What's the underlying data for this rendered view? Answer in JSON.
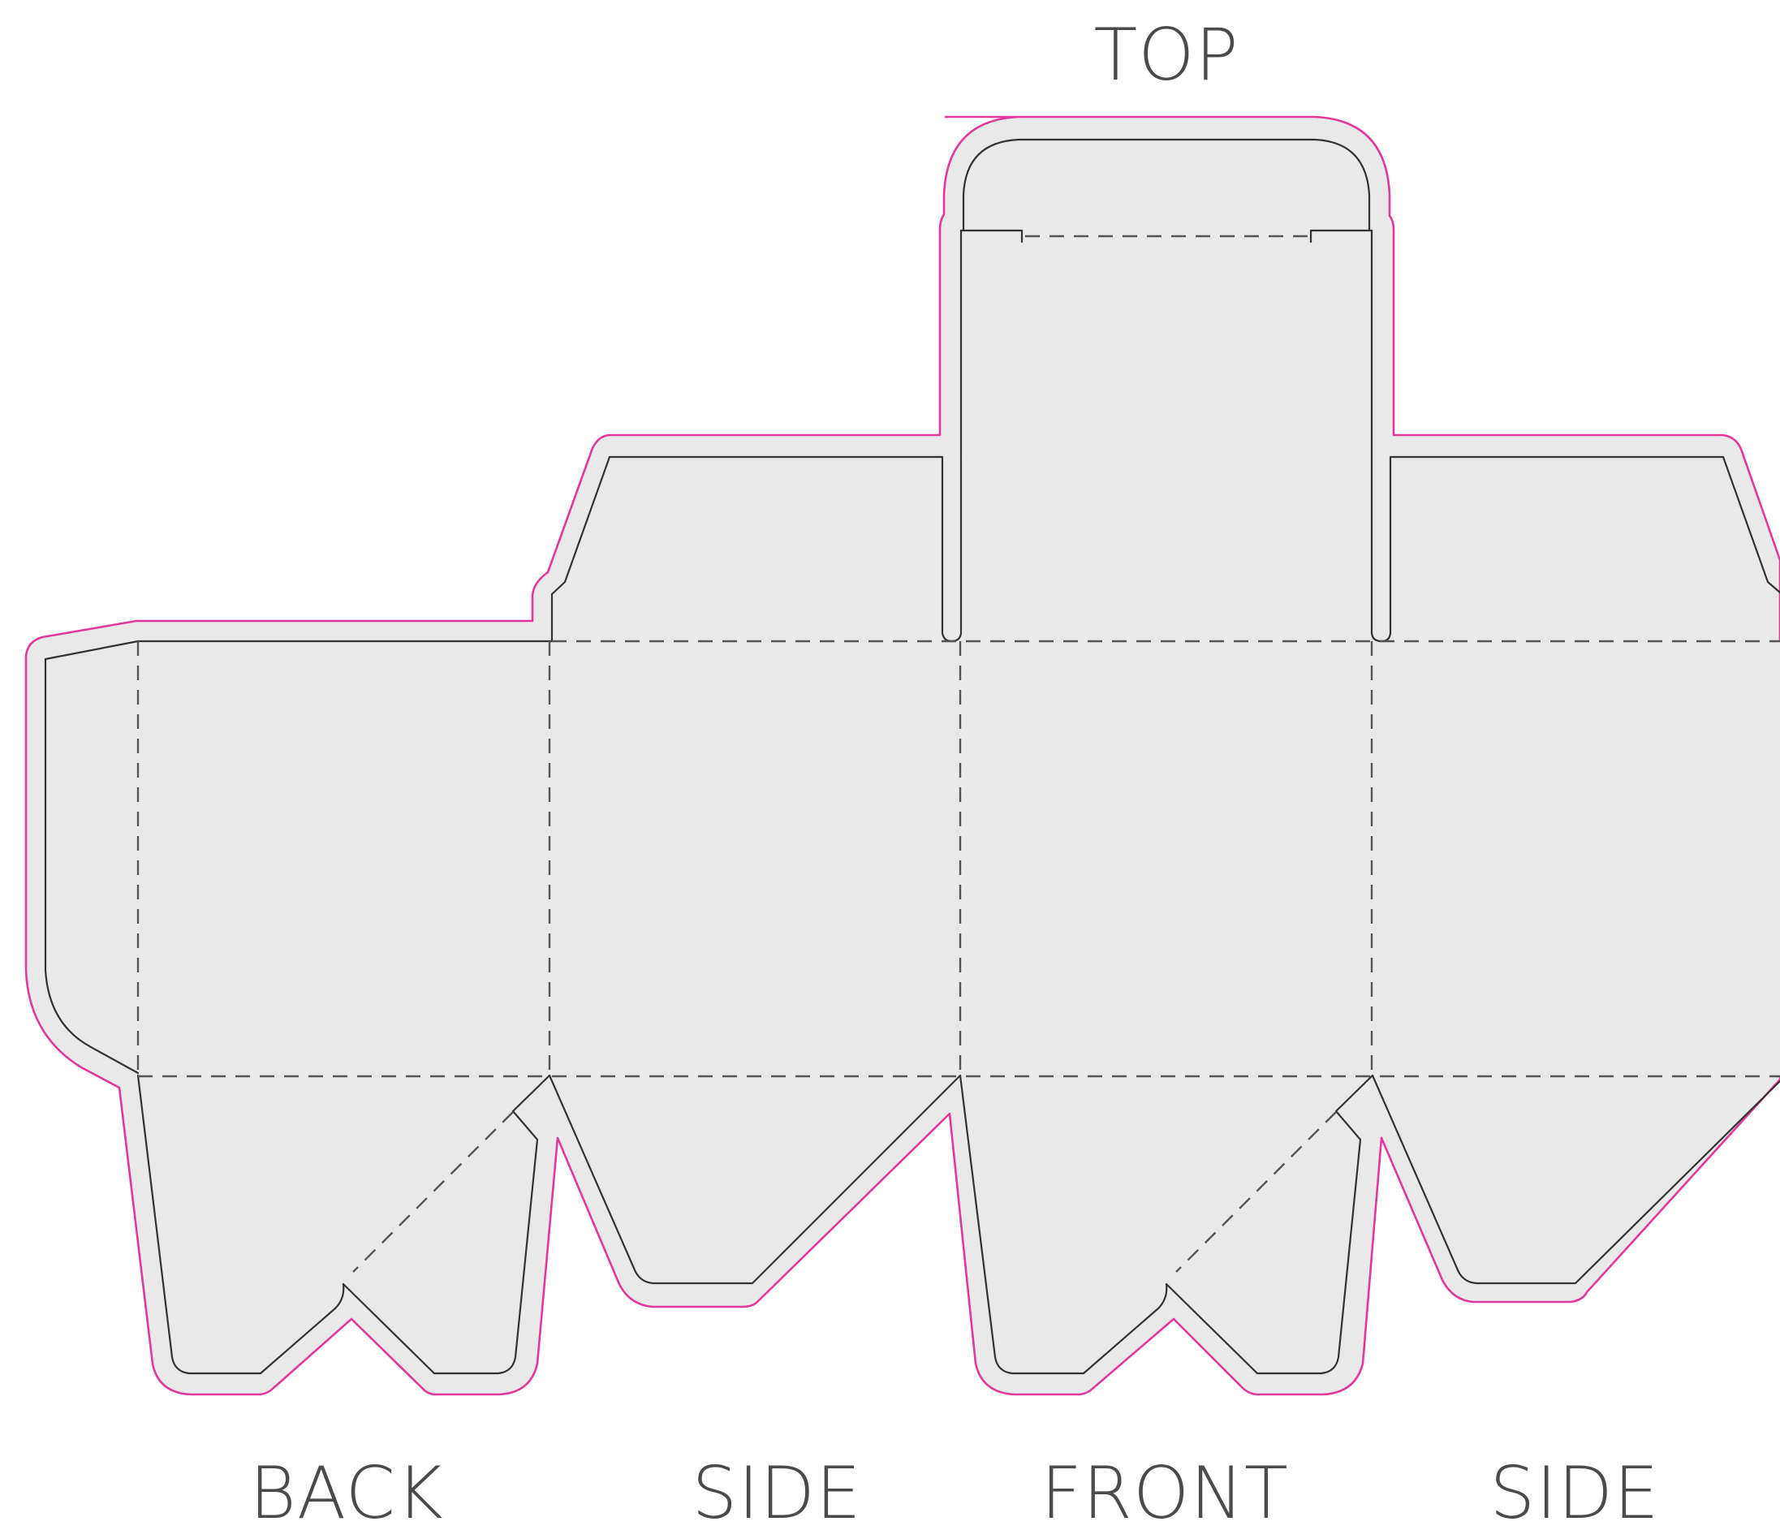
{
  "labels": {
    "top": "TOP",
    "back": "BACK",
    "side_left": "SIDE",
    "front": "FRONT",
    "side_right": "SIDE"
  },
  "colors": {
    "bleed_line": "#e0399b",
    "panel_fill": "#e9e9e9",
    "cut_line": "#333333",
    "fold_line": "#555555",
    "label_text": "#4a4a4a"
  }
}
